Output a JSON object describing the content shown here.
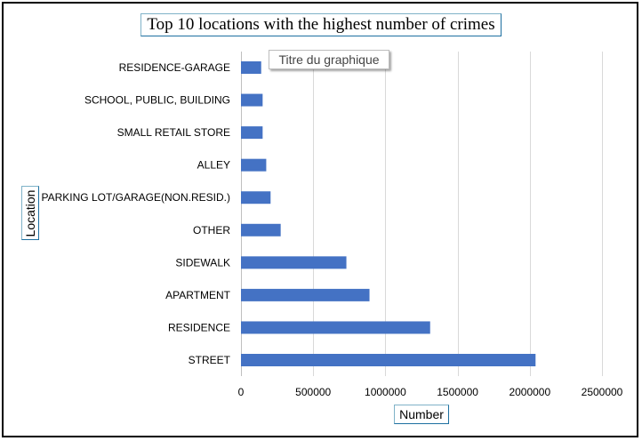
{
  "chart_data": {
    "type": "bar",
    "orientation": "horizontal",
    "title": "Top 10 locations with the highest number of crimes",
    "tooltip": "Titre du graphique",
    "xlabel": "Number",
    "ylabel": "Location",
    "categories": [
      "RESIDENCE-GARAGE",
      "SCHOOL, PUBLIC, BUILDING",
      "SMALL RETAIL STORE",
      "ALLEY",
      "PARKING LOT/GARAGE(NON.RESID.)",
      "OTHER",
      "SIDEWALK",
      "APARTMENT",
      "RESIDENCE",
      "STREET"
    ],
    "values": [
      140000,
      150000,
      150000,
      175000,
      205000,
      275000,
      730000,
      890000,
      1310000,
      2040000
    ],
    "xlim": [
      0,
      2500000
    ],
    "xticks": [
      0,
      500000,
      1000000,
      1500000,
      2000000,
      2500000
    ],
    "xtick_labels": [
      "0",
      "500000",
      "1000000",
      "1500000",
      "2000000",
      "2500000"
    ],
    "grid": "vertical",
    "bar_color": "#4472c4",
    "grid_color": "#d9d9d9"
  }
}
